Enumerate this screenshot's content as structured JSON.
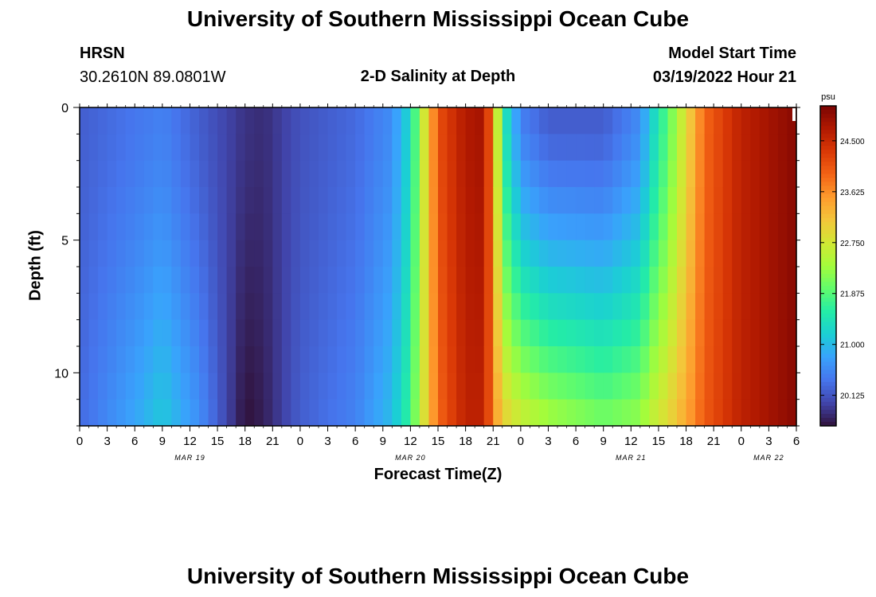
{
  "page": {
    "title": "University of Southern Mississippi Ocean Cube",
    "station": "HRSN",
    "coords": "30.2610N  89.0801W",
    "plot_title": "2-D Salinity at Depth",
    "model_start_label": "Model Start Time",
    "model_start_value": "03/19/2022 Hour 21",
    "footer_title": "University of Southern Mississippi Ocean Cube"
  },
  "chart_data": {
    "type": "heatmap",
    "title": "2-D Salinity at Depth",
    "xlabel": "Forecast Time(Z)",
    "ylabel": "Depth (ft)",
    "x_tick_labels": [
      "0",
      "3",
      "6",
      "9",
      "12",
      "15",
      "18",
      "21",
      "0",
      "3",
      "6",
      "9",
      "12",
      "15",
      "18",
      "21",
      "0",
      "3",
      "6",
      "9",
      "12",
      "15",
      "18",
      "21",
      "0",
      "3",
      "6"
    ],
    "x_range_hours": [
      0,
      78
    ],
    "date_labels": [
      {
        "label": "MAR 19",
        "hour": 12
      },
      {
        "label": "MAR 20",
        "hour": 36
      },
      {
        "label": "MAR 21",
        "hour": 60
      },
      {
        "label": "MAR 22",
        "hour": 75
      }
    ],
    "y_ticks": [
      0,
      5,
      10
    ],
    "y_range": [
      0,
      12
    ],
    "depth_levels": 12,
    "colorbar": {
      "unit": "psu",
      "min": 19.6,
      "max": 25.1,
      "tick_labels": [
        "24.500",
        "23.625",
        "22.750",
        "21.875",
        "21.000",
        "20.125"
      ],
      "colormap": [
        "#30123b",
        "#4145ab",
        "#4675ed",
        "#39a2fc",
        "#1bcfd4",
        "#24eca6",
        "#61fc6c",
        "#a4fc3b",
        "#d1e834",
        "#f3c63a",
        "#fe9b2d",
        "#f36315",
        "#d93806",
        "#b11901",
        "#7a0403"
      ]
    },
    "time_series_hourly_surface_bottom": {
      "description_units": "psu",
      "key_points": [
        {
          "hour": 0,
          "surface": 20.2,
          "bottom": 20.3
        },
        {
          "hour": 6,
          "surface": 20.4,
          "bottom": 20.8
        },
        {
          "hour": 9,
          "surface": 20.5,
          "bottom": 21.1
        },
        {
          "hour": 13,
          "surface": 20.2,
          "bottom": 20.6
        },
        {
          "hour": 18,
          "surface": 19.85,
          "bottom": 19.6
        },
        {
          "hour": 20,
          "surface": 19.8,
          "bottom": 19.7
        },
        {
          "hour": 24,
          "surface": 20.1,
          "bottom": 20.2
        },
        {
          "hour": 30,
          "surface": 20.3,
          "bottom": 20.5
        },
        {
          "hour": 34,
          "surface": 20.6,
          "bottom": 21.0
        },
        {
          "hour": 36,
          "surface": 21.3,
          "bottom": 21.7
        },
        {
          "hour": 37,
          "surface": 22.3,
          "bottom": 22.5
        },
        {
          "hour": 39,
          "surface": 24.1,
          "bottom": 23.9
        },
        {
          "hour": 42,
          "surface": 24.7,
          "bottom": 24.6
        },
        {
          "hour": 44,
          "surface": 24.8,
          "bottom": 24.6
        },
        {
          "hour": 45,
          "surface": 23.6,
          "bottom": 23.7
        },
        {
          "hour": 46,
          "surface": 21.6,
          "bottom": 23.0
        },
        {
          "hour": 48,
          "surface": 20.5,
          "bottom": 22.6
        },
        {
          "hour": 51,
          "surface": 20.2,
          "bottom": 22.3
        },
        {
          "hour": 57,
          "surface": 20.2,
          "bottom": 22.0
        },
        {
          "hour": 61,
          "surface": 20.6,
          "bottom": 22.2
        },
        {
          "hour": 62,
          "surface": 21.1,
          "bottom": 22.5
        },
        {
          "hour": 64,
          "surface": 21.9,
          "bottom": 22.9
        },
        {
          "hour": 66,
          "surface": 22.9,
          "bottom": 23.4
        },
        {
          "hour": 68,
          "surface": 23.9,
          "bottom": 24.0
        },
        {
          "hour": 72,
          "surface": 24.6,
          "bottom": 24.6
        },
        {
          "hour": 78,
          "surface": 25.0,
          "bottom": 25.0
        }
      ]
    }
  }
}
